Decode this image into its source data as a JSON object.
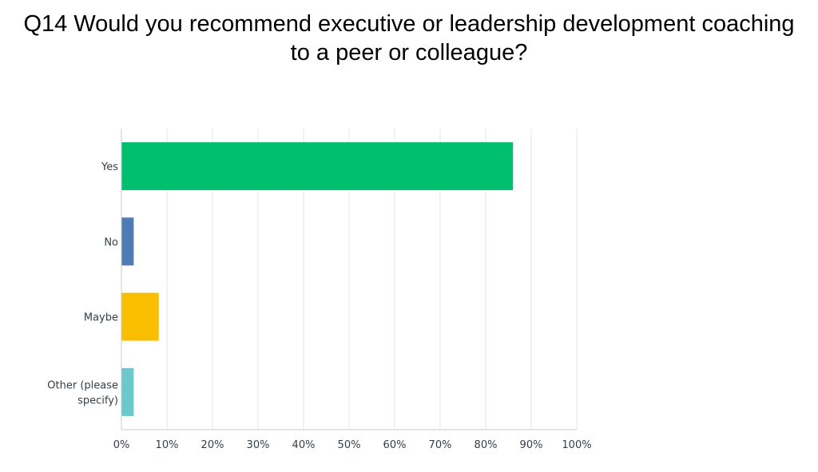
{
  "chart_data": {
    "type": "bar",
    "orientation": "horizontal",
    "title": "Q14 Would you recommend executive or leadership development coaching to a peer or colleague?",
    "title_lines": [
      "Q14 Would you recommend executive or leadership development coaching",
      "to a peer or colleague?"
    ],
    "categories": [
      [
        "Yes"
      ],
      [
        "No"
      ],
      [
        "Maybe"
      ],
      [
        "Other (please",
        "specify)"
      ]
    ],
    "values": [
      86,
      2.7,
      8.2,
      2.7
    ],
    "colors": [
      "#00bf6f",
      "#507cb6",
      "#f9be00",
      "#6bc8cd"
    ],
    "xlim": [
      0,
      100
    ],
    "ticks": [
      "0%",
      "10%",
      "20%",
      "30%",
      "40%",
      "50%",
      "60%",
      "70%",
      "80%",
      "90%",
      "100%"
    ],
    "grid": true,
    "legend": "none"
  }
}
